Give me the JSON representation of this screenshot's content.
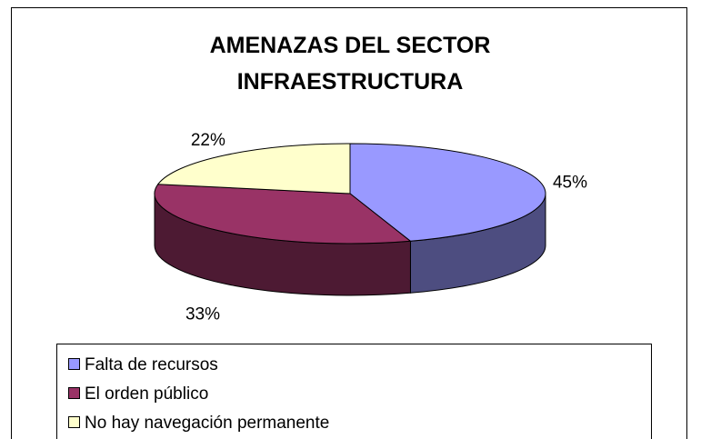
{
  "chart_data": {
    "type": "pie3d",
    "title": "AMENAZAS DEL SECTOR INFRAESTRUCTURA",
    "categories": [
      "Falta de recursos",
      "El orden público",
      "No hay navegación  permanente"
    ],
    "values": [
      45,
      33,
      22
    ],
    "value_labels": [
      "45%",
      "33%",
      "22%"
    ],
    "colors": [
      "#9999ff",
      "#993366",
      "#ffffcc"
    ],
    "legend": "bottom"
  }
}
